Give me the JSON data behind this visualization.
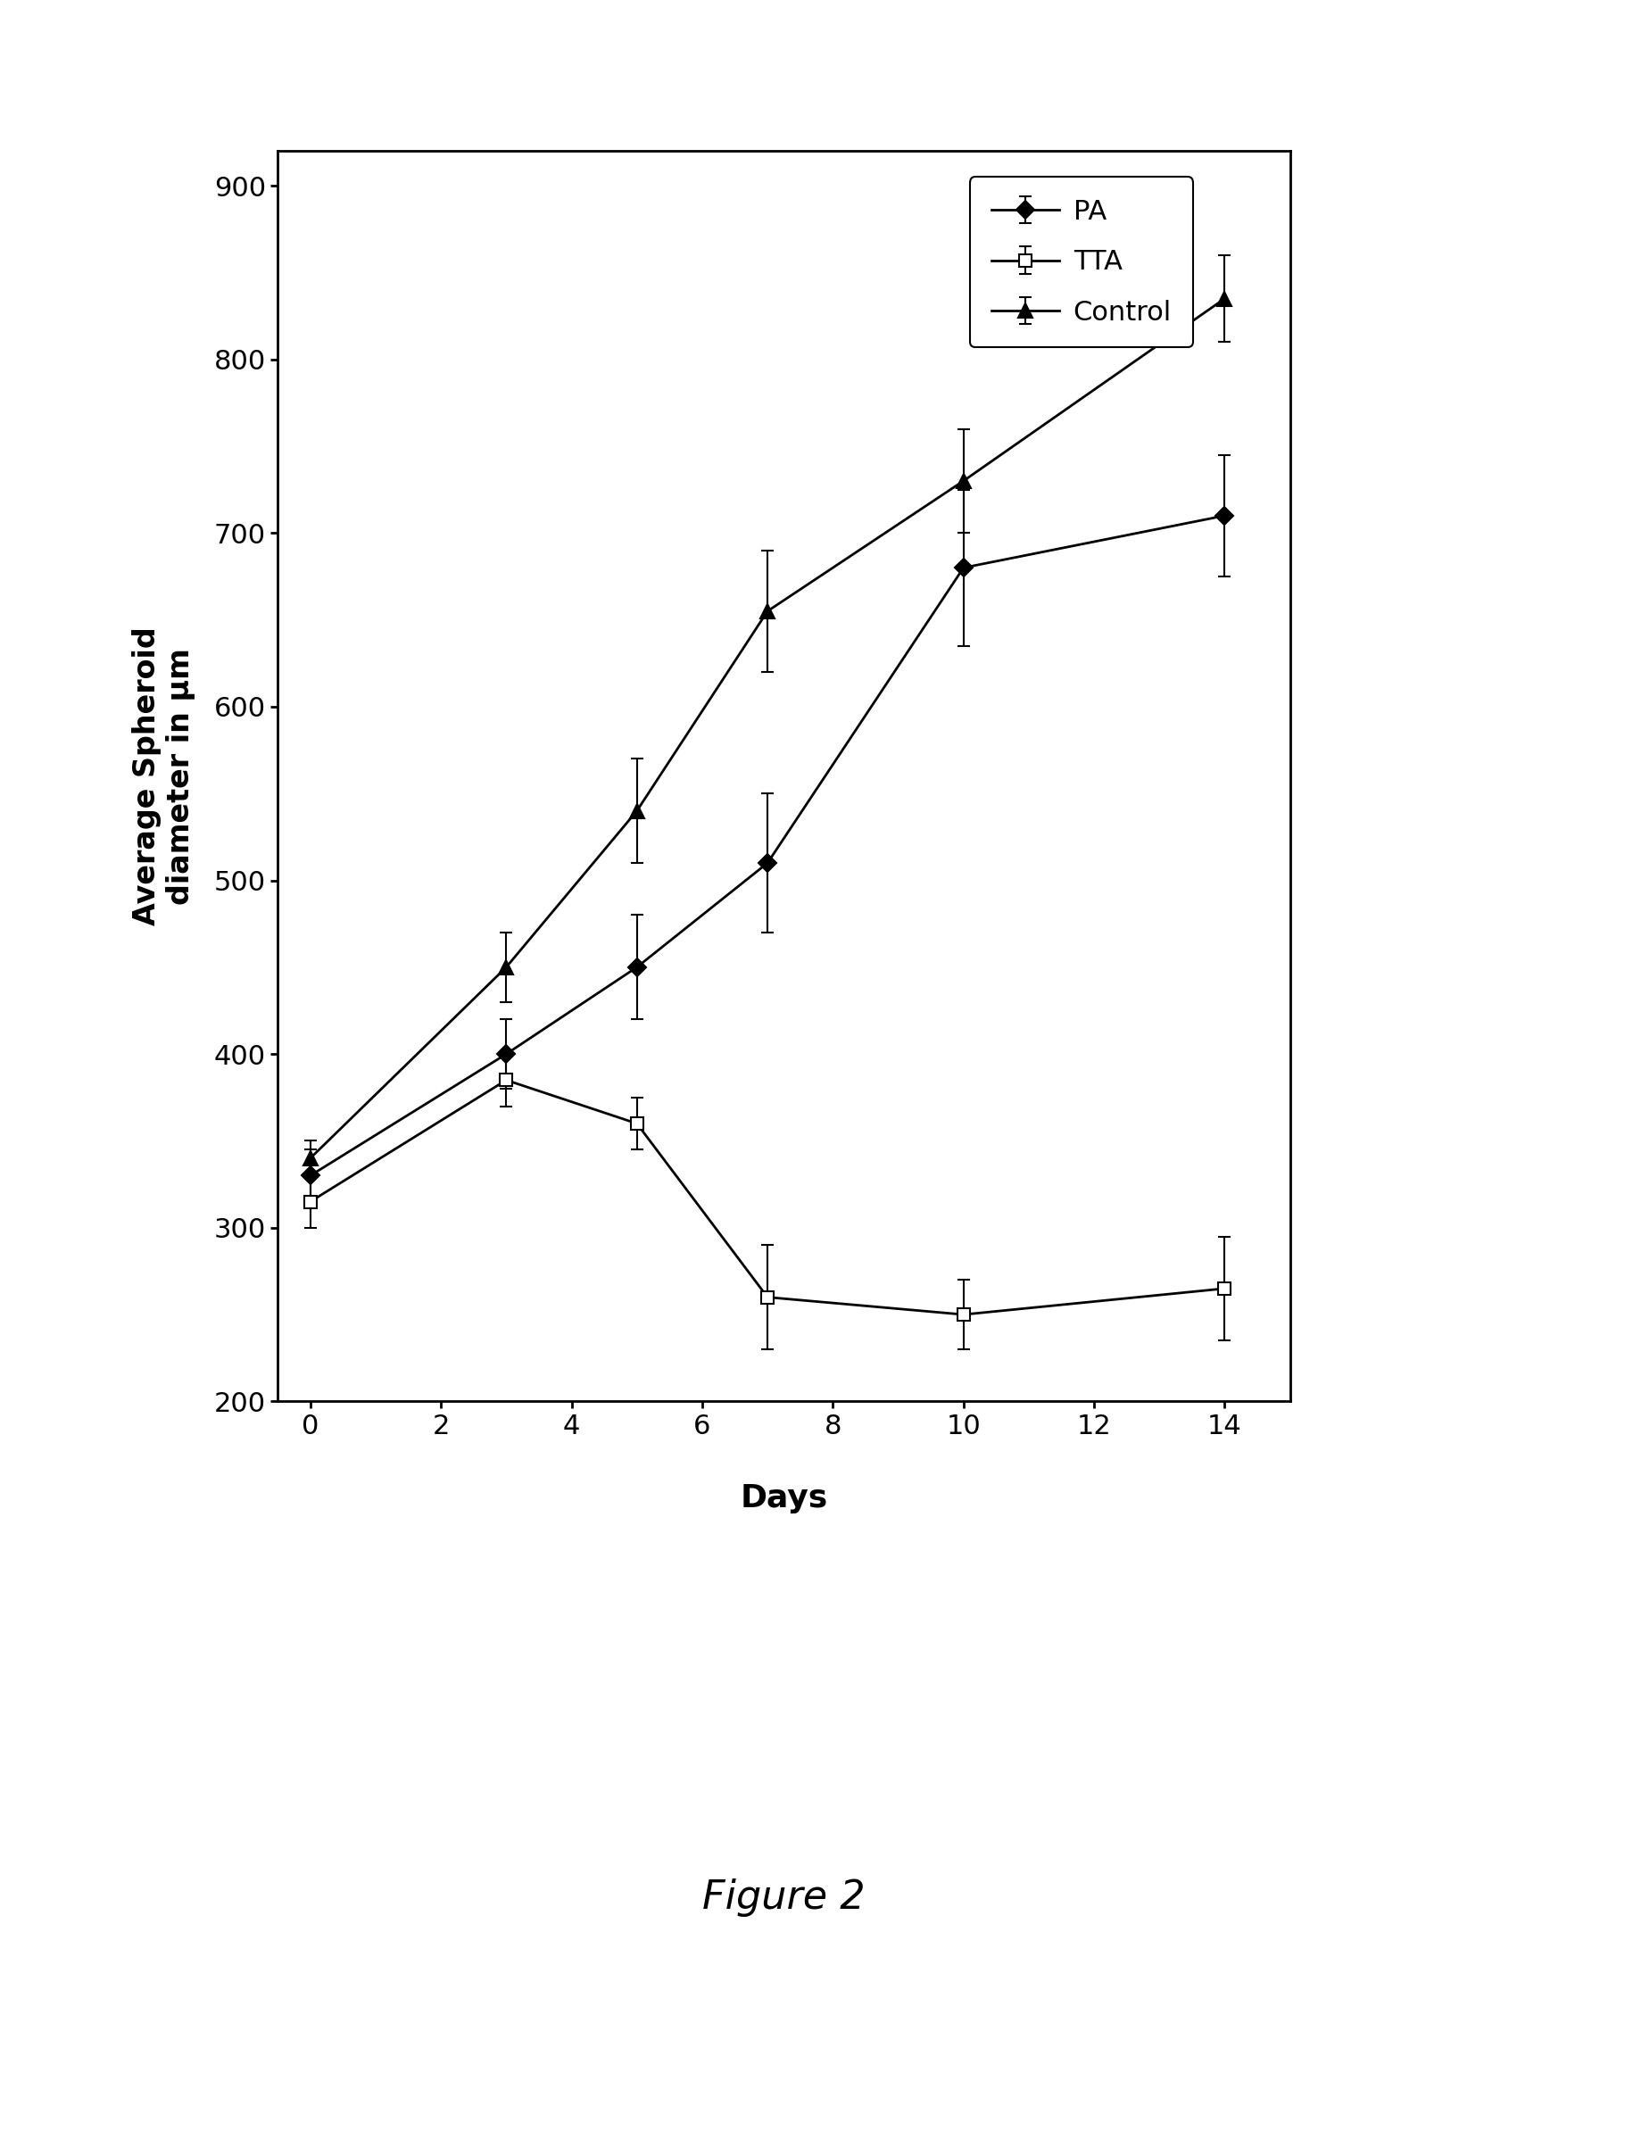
{
  "title": "Figure 2",
  "ylabel": "Average Spheroid\ndiameter in μm",
  "xlabel": "Days",
  "xlim": [
    -0.5,
    15
  ],
  "ylim": [
    200,
    920
  ],
  "xticks": [
    0,
    2,
    4,
    6,
    8,
    10,
    12,
    14
  ],
  "yticks": [
    200,
    300,
    400,
    500,
    600,
    700,
    800,
    900
  ],
  "PA": {
    "x": [
      0,
      3,
      5,
      7,
      10,
      14
    ],
    "y": [
      330,
      400,
      450,
      510,
      680,
      710
    ],
    "yerr": [
      15,
      20,
      30,
      40,
      45,
      35
    ],
    "label": "PA",
    "marker": "D",
    "color": "#000000",
    "markersize": 10
  },
  "TTA": {
    "x": [
      0,
      3,
      5,
      7,
      10,
      14
    ],
    "y": [
      315,
      385,
      360,
      260,
      250,
      265
    ],
    "yerr": [
      15,
      15,
      15,
      30,
      20,
      30
    ],
    "label": "TTA",
    "marker": "s",
    "color": "#000000",
    "markersize": 10
  },
  "Control": {
    "x": [
      0,
      3,
      5,
      7,
      10,
      14
    ],
    "y": [
      340,
      450,
      540,
      655,
      730,
      835
    ],
    "yerr": [
      10,
      20,
      30,
      35,
      30,
      25
    ],
    "label": "Control",
    "marker": "^",
    "color": "#000000",
    "markersize": 11
  },
  "background_color": "#ffffff",
  "axis_linewidth": 2.0,
  "linewidth": 2.0,
  "capsize": 5,
  "elinewidth": 1.5,
  "grid": false
}
